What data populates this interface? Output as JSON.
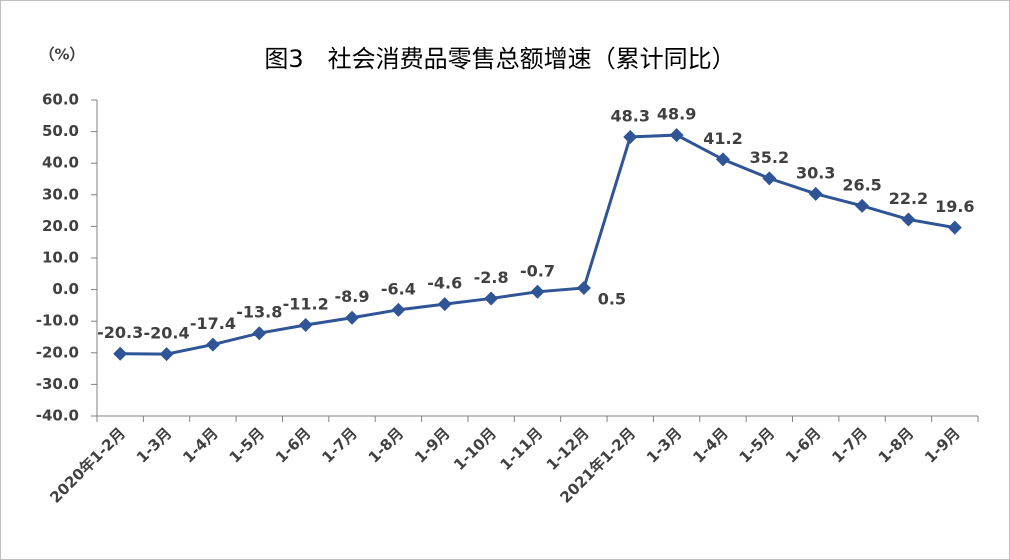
{
  "chart_data": {
    "type": "line",
    "title": "图3　社会消费品零售总额增速（累计同比）",
    "y_label": "（%）",
    "categories": [
      "2020年1-2月",
      "1-3月",
      "1-4月",
      "1-5月",
      "1-6月",
      "1-7月",
      "1-8月",
      "1-9月",
      "1-10月",
      "1-11月",
      "1-12月",
      "2021年1-2月",
      "1-3月",
      "1-4月",
      "1-5月",
      "1-6月",
      "1-7月",
      "1-8月",
      "1-9月"
    ],
    "values": [
      -20.3,
      -20.4,
      -17.4,
      -13.8,
      -11.2,
      -8.9,
      -6.4,
      -4.6,
      -2.8,
      -0.7,
      0.5,
      48.3,
      48.9,
      41.2,
      35.2,
      30.3,
      26.5,
      22.2,
      19.6
    ],
    "color": "#2f5597",
    "ylim": [
      -40,
      60
    ],
    "yticks": [
      {
        "value": -40,
        "label": "-40.0"
      },
      {
        "value": -30,
        "label": "-30.0"
      },
      {
        "value": -20,
        "label": "-20.0"
      },
      {
        "value": -10,
        "label": "-10.0"
      },
      {
        "value": 0,
        "label": "0.0"
      },
      {
        "value": 10,
        "label": "10.0"
      },
      {
        "value": 20,
        "label": "20.0"
      },
      {
        "value": 30,
        "label": "30.0"
      },
      {
        "value": 40,
        "label": "40.0"
      },
      {
        "value": 50,
        "label": "50.0"
      },
      {
        "value": 60,
        "label": "60.0"
      }
    ]
  }
}
